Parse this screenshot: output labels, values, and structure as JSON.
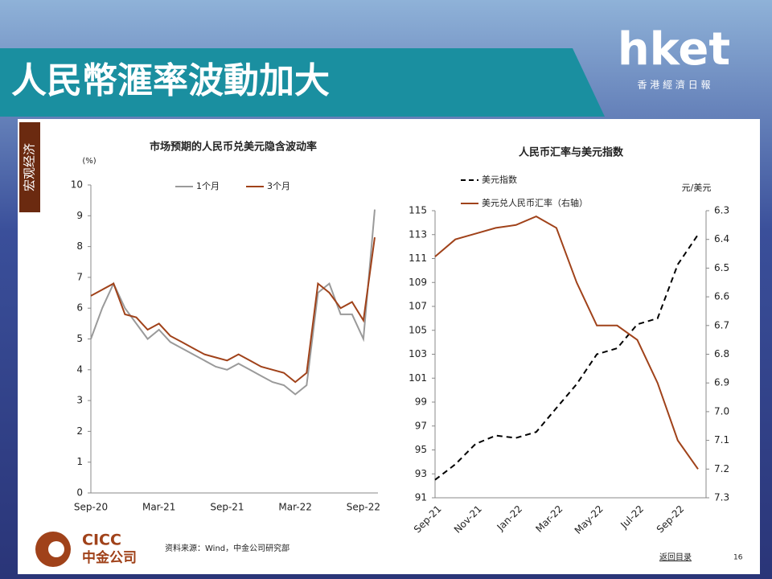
{
  "header": {
    "title": "人民幣滙率波動加大",
    "logo": "hket",
    "logo_sub": "香 港 經 濟 日 報",
    "section": "宏观经济"
  },
  "chart_data": [
    {
      "type": "line",
      "title": "市场预期的人民币兑美元隐含波动率",
      "y_label": "(%)",
      "categories": [
        "Sep-20",
        null,
        null,
        null,
        null,
        null,
        "Mar-21",
        null,
        null,
        null,
        null,
        null,
        "Sep-21",
        null,
        null,
        null,
        null,
        null,
        "Mar-22",
        null,
        null,
        null,
        null,
        null,
        "Sep-22",
        null
      ],
      "series": [
        {
          "name": "1个月",
          "color": "#9a9a9a",
          "values": [
            5.0,
            6.0,
            6.8,
            6.0,
            5.5,
            5.0,
            5.3,
            4.9,
            4.7,
            4.5,
            4.3,
            4.1,
            4.0,
            4.2,
            4.0,
            3.8,
            3.6,
            3.5,
            3.2,
            3.5,
            6.5,
            6.8,
            5.8,
            5.8,
            5.0,
            9.2
          ]
        },
        {
          "name": "3个月",
          "color": "#a0421a",
          "values": [
            6.4,
            6.6,
            6.8,
            5.8,
            5.7,
            5.3,
            5.5,
            5.1,
            4.9,
            4.7,
            4.5,
            4.4,
            4.3,
            4.5,
            4.3,
            4.1,
            4.0,
            3.9,
            3.6,
            3.9,
            6.8,
            6.5,
            6.0,
            6.2,
            5.6,
            8.3
          ]
        }
      ],
      "ylim": [
        0,
        10
      ],
      "yticks": [
        0,
        1,
        2,
        3,
        4,
        5,
        6,
        7,
        8,
        9,
        10
      ],
      "legend": "top"
    },
    {
      "type": "line",
      "title": "人民币汇率与美元指数",
      "y2_label": "元/美元",
      "categories": [
        "Sep-21",
        null,
        "Nov-21",
        null,
        "Jan-22",
        null,
        "Mar-22",
        null,
        "May-22",
        null,
        "Jul-22",
        null,
        "Sep-22",
        null
      ],
      "series": [
        {
          "name": "美元指数",
          "color": "#000000",
          "dash": true,
          "values": [
            92.5,
            93.8,
            95.5,
            96.2,
            96.0,
            96.5,
            98.5,
            100.5,
            103.0,
            103.5,
            105.5,
            106.0,
            110.5,
            113.0
          ]
        },
        {
          "name": "美元兑人民币汇率（右轴）",
          "color": "#a0421a",
          "axis": "y2",
          "values": [
            6.46,
            6.4,
            6.38,
            6.36,
            6.35,
            6.32,
            6.36,
            6.55,
            6.7,
            6.7,
            6.75,
            6.9,
            7.1,
            7.2
          ]
        }
      ],
      "ylim": [
        91,
        115
      ],
      "yticks": [
        91,
        93,
        95,
        97,
        99,
        101,
        103,
        105,
        107,
        109,
        111,
        113,
        115
      ],
      "y2lim": [
        6.3,
        7.3
      ],
      "y2_reversed": true,
      "y2ticks": [
        6.3,
        6.4,
        6.5,
        6.6,
        6.7,
        6.8,
        6.9,
        {
          "value": 7,
          "label": "7.0"
        },
        7.1,
        7.2,
        7.3
      ],
      "legend": "top-left"
    }
  ],
  "footer": {
    "brand": "CICC",
    "brand_cn": "中金公司",
    "source": "资料来源：Wind，中金公司研究部",
    "link": "返回目录",
    "page": "16"
  }
}
